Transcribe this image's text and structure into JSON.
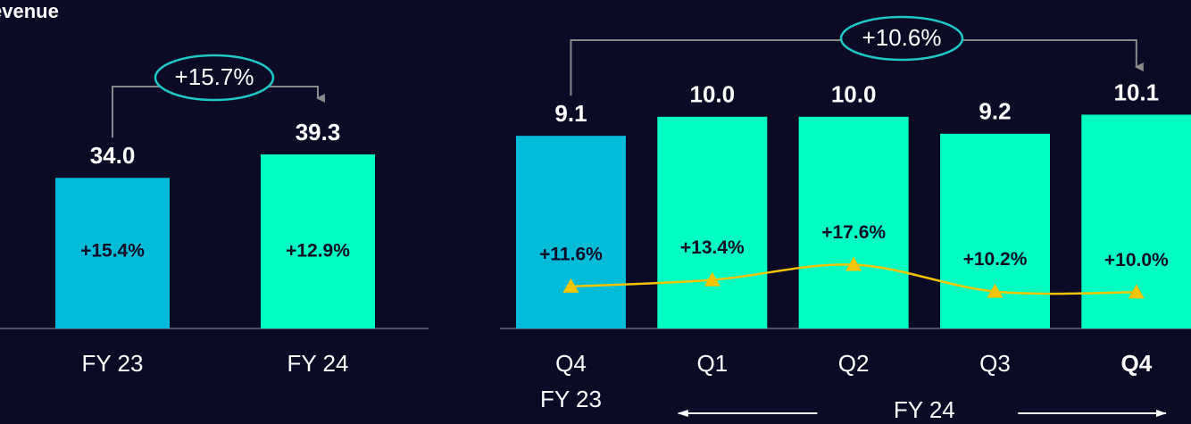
{
  "chart_data": [
    {
      "type": "bar",
      "title": "evenue",
      "categories": [
        "FY 23",
        "FY 24"
      ],
      "values": [
        34.0,
        39.3
      ],
      "value_labels": [
        "34.0",
        "39.3"
      ],
      "colors": [
        "#00bcd9",
        "#00ffc0"
      ],
      "inner_labels": [
        "+15.4%",
        "+12.9%"
      ],
      "annotation": "+15.7%",
      "ylim": [
        0,
        54
      ]
    },
    {
      "type": "bar",
      "categories": [
        "Q4",
        "Q1",
        "Q2",
        "Q3",
        "Q4"
      ],
      "values": [
        9.1,
        10.0,
        10.0,
        9.2,
        10.1
      ],
      "value_labels": [
        "9.1",
        "10.0",
        "10.0",
        "9.2",
        "10.1"
      ],
      "colors": [
        "#00bcd9",
        "#00ffc0",
        "#00ffc0",
        "#00ffc0",
        "#00ffc0"
      ],
      "bold_category": 4,
      "group_labels": [
        "FY 23",
        "FY 24"
      ],
      "annotation": "+10.6%",
      "ylim": [
        0,
        11.3
      ],
      "series": [
        {
          "color": "#f5c400",
          "axis": "y2",
          "values": [
            11.6,
            13.4,
            17.6,
            10.2,
            10.0
          ],
          "value_labels": [
            "+11.6%",
            "+13.4%",
            "+17.6%",
            "+10.2%",
            "+10.0%"
          ]
        }
      ],
      "y2lim": [
        0,
        66
      ]
    }
  ]
}
